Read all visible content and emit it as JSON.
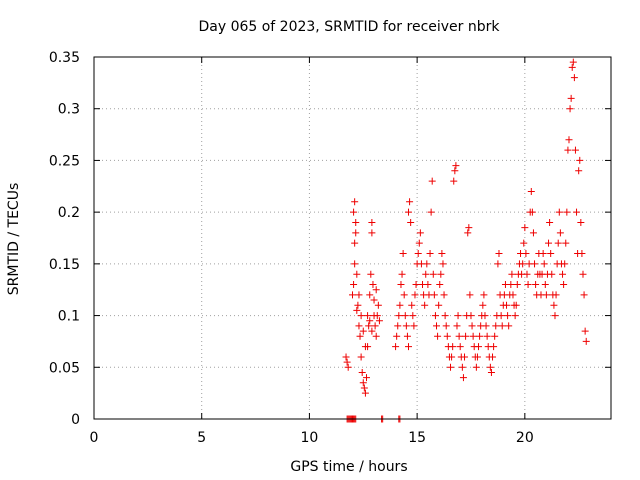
{
  "chart_data": {
    "type": "scatter",
    "title": "Day 065 of 2023, SRMTID for receiver nbrk",
    "xlabel": "GPS time / hours",
    "ylabel": "SRMTID / TECUs",
    "xlim": [
      0,
      24
    ],
    "ylim": [
      0,
      0.35
    ],
    "x_ticks": [
      0,
      5,
      10,
      15,
      20
    ],
    "x_tick_labels": [
      "0",
      "5",
      "10",
      "15",
      "20"
    ],
    "y_ticks": [
      0,
      0.05,
      0.1,
      0.15,
      0.2,
      0.25,
      0.3,
      0.35
    ],
    "y_tick_labels": [
      "0",
      "0.05",
      "0.1",
      "0.15",
      "0.2",
      "0.25",
      "0.3",
      "0.35"
    ],
    "grid": true,
    "marker": "plus",
    "colors": {
      "series": "#ee0000",
      "grid": "#a0a0a0",
      "axes": "#000000"
    },
    "series": [
      {
        "name": "SRMTID",
        "points": [
          [
            11.75,
            0.0
          ],
          [
            11.8,
            0.0
          ],
          [
            11.85,
            0.0
          ],
          [
            11.9,
            0.0
          ],
          [
            11.95,
            0.0
          ],
          [
            12.0,
            0.0
          ],
          [
            12.05,
            0.0
          ],
          [
            12.1,
            0.0
          ],
          [
            12.15,
            0.0
          ],
          [
            13.35,
            0.0
          ],
          [
            13.4,
            0.0
          ],
          [
            14.15,
            0.0
          ],
          [
            14.2,
            0.0
          ],
          [
            11.7,
            0.06
          ],
          [
            11.75,
            0.055
          ],
          [
            11.8,
            0.05
          ],
          [
            12.0,
            0.12
          ],
          [
            12.05,
            0.13
          ],
          [
            12.1,
            0.15
          ],
          [
            12.1,
            0.17
          ],
          [
            12.15,
            0.18
          ],
          [
            12.05,
            0.2
          ],
          [
            12.1,
            0.21
          ],
          [
            12.15,
            0.19
          ],
          [
            12.2,
            0.14
          ],
          [
            12.25,
            0.11
          ],
          [
            12.3,
            0.09
          ],
          [
            12.35,
            0.08
          ],
          [
            12.4,
            0.06
          ],
          [
            12.45,
            0.045
          ],
          [
            12.5,
            0.035
          ],
          [
            12.55,
            0.03
          ],
          [
            12.6,
            0.025
          ],
          [
            12.65,
            0.04
          ],
          [
            12.7,
            0.07
          ],
          [
            12.75,
            0.09
          ],
          [
            12.8,
            0.12
          ],
          [
            12.85,
            0.14
          ],
          [
            12.9,
            0.19
          ],
          [
            12.9,
            0.18
          ],
          [
            12.95,
            0.13
          ],
          [
            13.0,
            0.1
          ],
          [
            13.05,
            0.09
          ],
          [
            13.1,
            0.08
          ],
          [
            13.15,
            0.1
          ],
          [
            13.2,
            0.11
          ],
          [
            13.25,
            0.095
          ],
          [
            12.2,
            0.105
          ],
          [
            12.3,
            0.12
          ],
          [
            12.4,
            0.1
          ],
          [
            12.5,
            0.085
          ],
          [
            12.6,
            0.07
          ],
          [
            12.7,
            0.1
          ],
          [
            12.8,
            0.095
          ],
          [
            12.9,
            0.085
          ],
          [
            13.0,
            0.115
          ],
          [
            13.1,
            0.125
          ],
          [
            14.0,
            0.07
          ],
          [
            14.05,
            0.08
          ],
          [
            14.1,
            0.09
          ],
          [
            14.15,
            0.1
          ],
          [
            14.2,
            0.11
          ],
          [
            14.25,
            0.13
          ],
          [
            14.3,
            0.14
          ],
          [
            14.35,
            0.16
          ],
          [
            14.4,
            0.12
          ],
          [
            14.45,
            0.1
          ],
          [
            14.5,
            0.09
          ],
          [
            14.55,
            0.08
          ],
          [
            14.6,
            0.07
          ],
          [
            14.6,
            0.2
          ],
          [
            14.65,
            0.21
          ],
          [
            14.7,
            0.19
          ],
          [
            14.75,
            0.11
          ],
          [
            14.8,
            0.1
          ],
          [
            14.85,
            0.09
          ],
          [
            14.9,
            0.12
          ],
          [
            14.95,
            0.13
          ],
          [
            15.0,
            0.15
          ],
          [
            15.05,
            0.16
          ],
          [
            15.1,
            0.17
          ],
          [
            15.15,
            0.18
          ],
          [
            15.2,
            0.15
          ],
          [
            15.25,
            0.13
          ],
          [
            15.3,
            0.12
          ],
          [
            15.35,
            0.11
          ],
          [
            15.4,
            0.14
          ],
          [
            15.45,
            0.15
          ],
          [
            15.5,
            0.13
          ],
          [
            15.55,
            0.12
          ],
          [
            15.6,
            0.16
          ],
          [
            15.65,
            0.2
          ],
          [
            15.7,
            0.23
          ],
          [
            15.75,
            0.14
          ],
          [
            15.8,
            0.12
          ],
          [
            15.85,
            0.1
          ],
          [
            15.9,
            0.09
          ],
          [
            15.95,
            0.08
          ],
          [
            16.0,
            0.11
          ],
          [
            16.05,
            0.13
          ],
          [
            16.1,
            0.14
          ],
          [
            16.15,
            0.16
          ],
          [
            16.2,
            0.15
          ],
          [
            16.25,
            0.12
          ],
          [
            16.3,
            0.1
          ],
          [
            16.35,
            0.09
          ],
          [
            16.4,
            0.08
          ],
          [
            16.45,
            0.07
          ],
          [
            16.5,
            0.06
          ],
          [
            16.55,
            0.05
          ],
          [
            16.6,
            0.06
          ],
          [
            16.65,
            0.07
          ],
          [
            16.7,
            0.23
          ],
          [
            16.75,
            0.24
          ],
          [
            16.8,
            0.245
          ],
          [
            16.85,
            0.09
          ],
          [
            16.9,
            0.1
          ],
          [
            16.95,
            0.08
          ],
          [
            17.0,
            0.07
          ],
          [
            17.05,
            0.06
          ],
          [
            17.1,
            0.05
          ],
          [
            17.15,
            0.04
          ],
          [
            17.2,
            0.06
          ],
          [
            17.25,
            0.08
          ],
          [
            17.3,
            0.1
          ],
          [
            17.35,
            0.18
          ],
          [
            17.4,
            0.185
          ],
          [
            17.45,
            0.12
          ],
          [
            17.5,
            0.1
          ],
          [
            17.55,
            0.09
          ],
          [
            17.6,
            0.08
          ],
          [
            17.65,
            0.07
          ],
          [
            17.7,
            0.06
          ],
          [
            17.75,
            0.05
          ],
          [
            17.8,
            0.06
          ],
          [
            17.85,
            0.07
          ],
          [
            17.9,
            0.08
          ],
          [
            17.95,
            0.09
          ],
          [
            18.0,
            0.1
          ],
          [
            18.05,
            0.11
          ],
          [
            18.1,
            0.12
          ],
          [
            18.15,
            0.1
          ],
          [
            18.2,
            0.09
          ],
          [
            18.25,
            0.08
          ],
          [
            18.3,
            0.07
          ],
          [
            18.35,
            0.06
          ],
          [
            18.4,
            0.05
          ],
          [
            18.45,
            0.045
          ],
          [
            18.5,
            0.06
          ],
          [
            18.55,
            0.07
          ],
          [
            18.6,
            0.08
          ],
          [
            18.65,
            0.09
          ],
          [
            18.7,
            0.1
          ],
          [
            18.75,
            0.15
          ],
          [
            18.8,
            0.16
          ],
          [
            18.85,
            0.12
          ],
          [
            18.9,
            0.1
          ],
          [
            18.95,
            0.09
          ],
          [
            19.0,
            0.11
          ],
          [
            19.05,
            0.12
          ],
          [
            19.1,
            0.13
          ],
          [
            19.15,
            0.11
          ],
          [
            19.2,
            0.1
          ],
          [
            19.25,
            0.09
          ],
          [
            19.3,
            0.12
          ],
          [
            19.35,
            0.13
          ],
          [
            19.4,
            0.14
          ],
          [
            19.45,
            0.12
          ],
          [
            19.5,
            0.11
          ],
          [
            19.55,
            0.1
          ],
          [
            19.6,
            0.11
          ],
          [
            19.65,
            0.13
          ],
          [
            19.7,
            0.14
          ],
          [
            19.75,
            0.15
          ],
          [
            19.8,
            0.16
          ],
          [
            19.85,
            0.14
          ],
          [
            19.9,
            0.15
          ],
          [
            19.95,
            0.17
          ],
          [
            20.0,
            0.185
          ],
          [
            20.05,
            0.16
          ],
          [
            20.1,
            0.14
          ],
          [
            20.15,
            0.13
          ],
          [
            20.2,
            0.15
          ],
          [
            20.25,
            0.2
          ],
          [
            20.3,
            0.22
          ],
          [
            20.35,
            0.2
          ],
          [
            20.4,
            0.18
          ],
          [
            20.45,
            0.15
          ],
          [
            20.5,
            0.13
          ],
          [
            20.55,
            0.12
          ],
          [
            20.6,
            0.14
          ],
          [
            20.65,
            0.16
          ],
          [
            20.7,
            0.14
          ],
          [
            20.75,
            0.12
          ],
          [
            20.8,
            0.14
          ],
          [
            20.85,
            0.16
          ],
          [
            20.9,
            0.15
          ],
          [
            20.95,
            0.13
          ],
          [
            21.0,
            0.12
          ],
          [
            21.05,
            0.14
          ],
          [
            21.1,
            0.17
          ],
          [
            21.15,
            0.19
          ],
          [
            21.2,
            0.16
          ],
          [
            21.25,
            0.14
          ],
          [
            21.3,
            0.12
          ],
          [
            21.35,
            0.11
          ],
          [
            21.4,
            0.1
          ],
          [
            21.45,
            0.12
          ],
          [
            21.5,
            0.15
          ],
          [
            21.55,
            0.17
          ],
          [
            21.6,
            0.2
          ],
          [
            21.65,
            0.18
          ],
          [
            21.7,
            0.15
          ],
          [
            21.75,
            0.14
          ],
          [
            21.8,
            0.13
          ],
          [
            21.85,
            0.15
          ],
          [
            21.9,
            0.17
          ],
          [
            21.95,
            0.2
          ],
          [
            22.0,
            0.26
          ],
          [
            22.05,
            0.27
          ],
          [
            22.1,
            0.3
          ],
          [
            22.15,
            0.31
          ],
          [
            22.2,
            0.34
          ],
          [
            22.25,
            0.345
          ],
          [
            22.3,
            0.33
          ],
          [
            22.35,
            0.26
          ],
          [
            22.4,
            0.2
          ],
          [
            22.45,
            0.16
          ],
          [
            22.5,
            0.24
          ],
          [
            22.55,
            0.25
          ],
          [
            22.6,
            0.19
          ],
          [
            22.65,
            0.16
          ],
          [
            22.7,
            0.14
          ],
          [
            22.75,
            0.12
          ],
          [
            22.8,
            0.085
          ],
          [
            22.85,
            0.075
          ]
        ]
      }
    ]
  }
}
